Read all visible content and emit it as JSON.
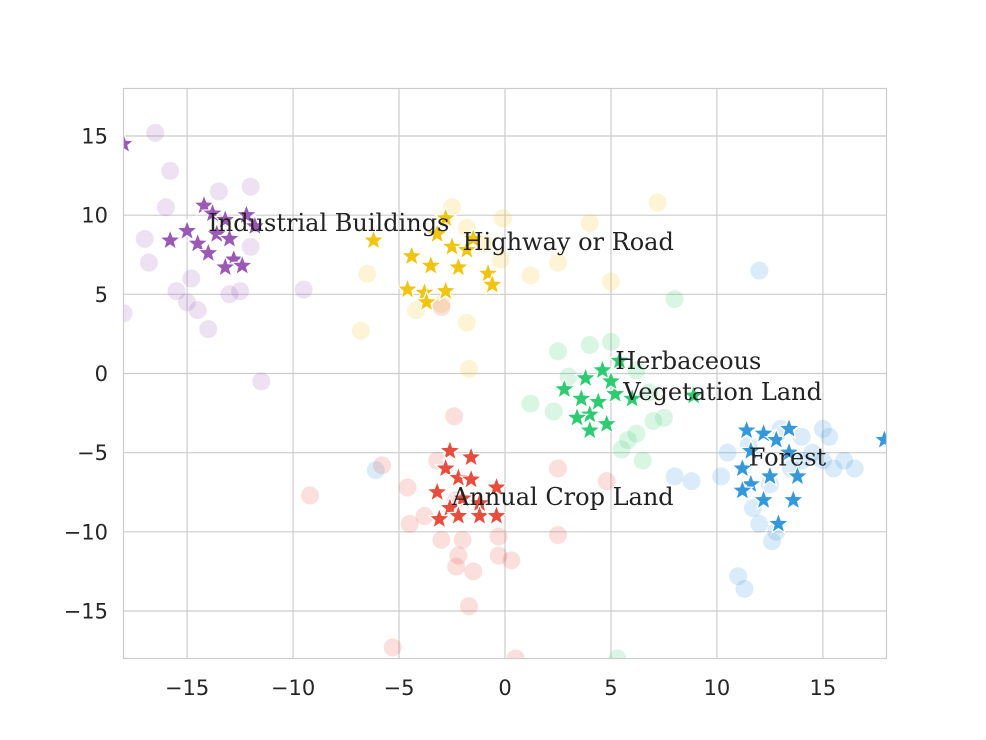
{
  "chart_data": {
    "type": "scatter",
    "title": "",
    "xlabel": "",
    "ylabel": "",
    "xlim": [
      -18,
      18
    ],
    "ylim": [
      -18,
      18
    ],
    "xticks": [
      -15,
      -10,
      -5,
      0,
      5,
      10,
      15
    ],
    "yticks": [
      -15,
      -10,
      -5,
      0,
      5,
      10,
      15
    ],
    "xtick_labels": [
      "−15",
      "−10",
      "−5",
      "0",
      "5",
      "10",
      "15"
    ],
    "ytick_labels": [
      "−15",
      "−10",
      "−5",
      "0",
      "5",
      "10",
      "15"
    ],
    "grid": true,
    "marker_star_alpha": 1.0,
    "marker_circle_alpha": 0.18,
    "series": [
      {
        "name": "Industrial Buildings",
        "color": "#9b59b6",
        "label_pos": [
          -14.0,
          9.0
        ],
        "stars": [
          [
            -18.0,
            14.5
          ],
          [
            -14.2,
            10.6
          ],
          [
            -13.8,
            10.1
          ],
          [
            -13.2,
            9.7
          ],
          [
            -12.2,
            10.0
          ],
          [
            -15.8,
            8.4
          ],
          [
            -14.5,
            8.2
          ],
          [
            -13.6,
            8.8
          ],
          [
            -12.8,
            7.2
          ],
          [
            -13.2,
            6.7
          ],
          [
            -12.4,
            6.8
          ],
          [
            -14.0,
            7.6
          ],
          [
            -11.8,
            9.3
          ],
          [
            -15.0,
            9.0
          ],
          [
            -13.0,
            8.5
          ]
        ],
        "circles": [
          [
            -16.5,
            15.2
          ],
          [
            -15.8,
            12.8
          ],
          [
            -16.0,
            10.5
          ],
          [
            -17.0,
            8.5
          ],
          [
            -16.8,
            7.0
          ],
          [
            -15.5,
            5.2
          ],
          [
            -15.0,
            4.5
          ],
          [
            -14.5,
            4.0
          ],
          [
            -14.0,
            2.8
          ],
          [
            -13.0,
            5.0
          ],
          [
            -12.5,
            5.2
          ],
          [
            -12.0,
            11.8
          ],
          [
            -13.5,
            11.5
          ],
          [
            -9.5,
            5.3
          ],
          [
            -11.5,
            -0.5
          ],
          [
            -18.0,
            3.8
          ],
          [
            -14.8,
            6.0
          ],
          [
            -12.0,
            8.0
          ]
        ]
      },
      {
        "name": "Highway or Road",
        "color": "#f1c40f",
        "label_pos": [
          -2.0,
          7.8
        ],
        "stars": [
          [
            -2.8,
            9.8
          ],
          [
            -3.2,
            8.8
          ],
          [
            -2.5,
            8.0
          ],
          [
            -1.8,
            7.8
          ],
          [
            -4.4,
            7.4
          ],
          [
            -3.5,
            6.8
          ],
          [
            -2.2,
            6.7
          ],
          [
            -0.8,
            6.3
          ],
          [
            -4.6,
            5.3
          ],
          [
            -3.8,
            5.1
          ],
          [
            -2.8,
            5.2
          ],
          [
            -3.7,
            4.5
          ],
          [
            -6.2,
            8.4
          ],
          [
            -1.5,
            8.5
          ],
          [
            -0.6,
            5.6
          ]
        ],
        "circles": [
          [
            -2.5,
            10.5
          ],
          [
            -1.8,
            9.2
          ],
          [
            -1.0,
            8.2
          ],
          [
            -0.2,
            7.2
          ],
          [
            -0.1,
            9.8
          ],
          [
            1.2,
            6.2
          ],
          [
            2.5,
            7.0
          ],
          [
            4.0,
            9.5
          ],
          [
            7.2,
            10.8
          ],
          [
            5.0,
            5.8
          ],
          [
            -6.8,
            2.7
          ],
          [
            -6.5,
            6.3
          ],
          [
            -4.2,
            4.0
          ],
          [
            -1.8,
            3.2
          ],
          [
            -1.7,
            0.3
          ],
          [
            -3.0,
            4.4
          ]
        ]
      },
      {
        "name": "Herbaceous\nVegetation Land",
        "color": "#2ecc71",
        "label_pos": [
          5.2,
          0.3
        ],
        "stars": [
          [
            5.4,
            0.8
          ],
          [
            4.6,
            0.2
          ],
          [
            3.8,
            -0.3
          ],
          [
            2.8,
            -1.0
          ],
          [
            3.6,
            -1.6
          ],
          [
            4.4,
            -1.8
          ],
          [
            5.2,
            -1.3
          ],
          [
            6.0,
            -1.6
          ],
          [
            4.0,
            -2.6
          ],
          [
            4.8,
            -3.2
          ],
          [
            4.0,
            -3.6
          ],
          [
            3.4,
            -2.8
          ],
          [
            8.9,
            -1.4
          ],
          [
            5.0,
            -0.5
          ]
        ],
        "circles": [
          [
            2.5,
            1.4
          ],
          [
            4.0,
            1.8
          ],
          [
            5.0,
            2.0
          ],
          [
            6.2,
            0.2
          ],
          [
            6.8,
            -1.2
          ],
          [
            7.5,
            -2.8
          ],
          [
            6.2,
            -3.8
          ],
          [
            5.5,
            -4.8
          ],
          [
            6.5,
            -5.5
          ],
          [
            5.8,
            -4.2
          ],
          [
            3.0,
            -0.2
          ],
          [
            1.2,
            -1.9
          ],
          [
            2.3,
            -2.4
          ],
          [
            8.0,
            4.7
          ],
          [
            7.0,
            -3.0
          ],
          [
            5.3,
            -18.0
          ]
        ]
      },
      {
        "name": "Forest",
        "color": "#3498db",
        "label_pos": [
          11.5,
          -5.8
        ],
        "stars": [
          [
            11.4,
            -3.6
          ],
          [
            12.2,
            -3.8
          ],
          [
            12.8,
            -4.2
          ],
          [
            13.4,
            -3.5
          ],
          [
            11.6,
            -4.9
          ],
          [
            13.4,
            -5.0
          ],
          [
            11.2,
            -6.0
          ],
          [
            12.5,
            -6.5
          ],
          [
            13.8,
            -6.5
          ],
          [
            11.6,
            -7.0
          ],
          [
            11.2,
            -7.4
          ],
          [
            12.2,
            -8.0
          ],
          [
            13.6,
            -8.0
          ],
          [
            12.9,
            -9.5
          ],
          [
            17.9,
            -4.2
          ]
        ],
        "circles": [
          [
            12.0,
            6.5
          ],
          [
            11.5,
            -4.5
          ],
          [
            13.0,
            -3.5
          ],
          [
            14.0,
            -4.0
          ],
          [
            15.0,
            -3.5
          ],
          [
            15.3,
            -4.0
          ],
          [
            15.0,
            -5.5
          ],
          [
            14.5,
            -5.0
          ],
          [
            15.5,
            -6.0
          ],
          [
            16.5,
            -6.0
          ],
          [
            16.0,
            -5.5
          ],
          [
            14.0,
            -5.5
          ],
          [
            13.5,
            -6.0
          ],
          [
            12.5,
            -7.0
          ],
          [
            11.7,
            -8.5
          ],
          [
            12.0,
            -9.5
          ],
          [
            12.8,
            -10.0
          ],
          [
            12.6,
            -10.6
          ],
          [
            10.5,
            -5.0
          ],
          [
            10.2,
            -6.5
          ],
          [
            8.0,
            -6.5
          ],
          [
            8.8,
            -6.8
          ],
          [
            11.0,
            -12.8
          ],
          [
            11.3,
            -13.6
          ],
          [
            -6.1,
            -6.1
          ]
        ]
      },
      {
        "name": "Annual Crop Land",
        "color": "#e74c3c",
        "label_pos": [
          -2.5,
          -8.3
        ],
        "stars": [
          [
            -2.6,
            -4.9
          ],
          [
            -1.6,
            -5.3
          ],
          [
            -2.8,
            -6.0
          ],
          [
            -2.2,
            -6.6
          ],
          [
            -1.6,
            -6.7
          ],
          [
            -3.2,
            -7.5
          ],
          [
            -2.0,
            -7.9
          ],
          [
            -0.4,
            -7.2
          ],
          [
            -2.6,
            -8.5
          ],
          [
            -1.2,
            -8.2
          ],
          [
            -3.1,
            -9.2
          ],
          [
            -2.2,
            -9.0
          ],
          [
            -1.2,
            -9.0
          ],
          [
            -0.4,
            -9.0
          ]
        ],
        "circles": [
          [
            -2.4,
            -2.7
          ],
          [
            -5.8,
            -5.8
          ],
          [
            -3.2,
            -5.5
          ],
          [
            -4.6,
            -7.2
          ],
          [
            -3.8,
            -9.0
          ],
          [
            -4.5,
            -9.5
          ],
          [
            -3.0,
            -10.5
          ],
          [
            -2.0,
            -10.5
          ],
          [
            -2.2,
            -11.5
          ],
          [
            -2.3,
            -12.2
          ],
          [
            -1.5,
            -12.5
          ],
          [
            -0.3,
            -10.3
          ],
          [
            -0.3,
            -11.5
          ],
          [
            0.3,
            -11.8
          ],
          [
            2.5,
            -6.0
          ],
          [
            2.5,
            -10.2
          ],
          [
            4.8,
            -6.8
          ],
          [
            -9.2,
            -7.7
          ],
          [
            -2.3,
            -8.0
          ],
          [
            -5.3,
            -17.3
          ],
          [
            0.5,
            -18.0
          ],
          [
            -1.7,
            -14.7
          ],
          [
            -3.0,
            4.2
          ]
        ]
      }
    ]
  }
}
